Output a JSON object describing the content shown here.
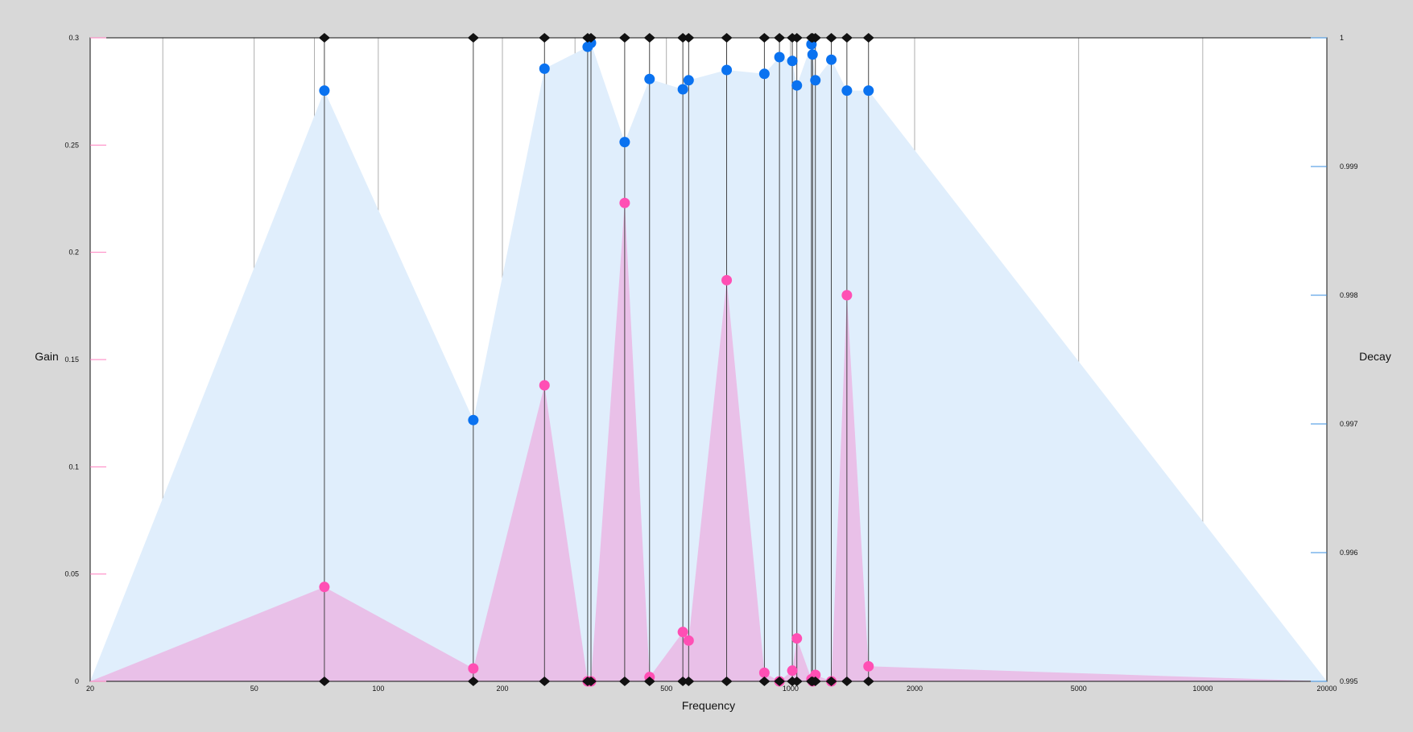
{
  "chart_data": {
    "type": "line",
    "title": "",
    "xlabel": "Frequency",
    "ylabel": "Gain",
    "y2label": "Decay",
    "x_scale": "log",
    "xlim": [
      20,
      20000
    ],
    "ylim": [
      0,
      0.3
    ],
    "y2lim": [
      0.995,
      1
    ],
    "x_ticks": [
      {
        "value": 20,
        "label": "20"
      },
      {
        "value": 50,
        "label": "50"
      },
      {
        "value": 100,
        "label": "100"
      },
      {
        "value": 200,
        "label": "200"
      },
      {
        "value": 500,
        "label": "500"
      },
      {
        "value": 1000,
        "label": "1000"
      },
      {
        "value": 2000,
        "label": "2000"
      },
      {
        "value": 5000,
        "label": "5000"
      },
      {
        "value": 10000,
        "label": "10000"
      },
      {
        "value": 20000,
        "label": "20000"
      }
    ],
    "x_grid_only": [
      30,
      70,
      300,
      700
    ],
    "y_ticks": [
      {
        "value": 0,
        "label": "0"
      },
      {
        "value": 0.05,
        "label": "0.05"
      },
      {
        "value": 0.1,
        "label": "0.1"
      },
      {
        "value": 0.15,
        "label": "0.15"
      },
      {
        "value": 0.2,
        "label": "0.2"
      },
      {
        "value": 0.25,
        "label": "0.25"
      },
      {
        "value": 0.3,
        "label": "0.3"
      }
    ],
    "y2_ticks": [
      {
        "value": 0.995,
        "label": "0.995"
      },
      {
        "value": 0.996,
        "label": "0.996"
      },
      {
        "value": 0.997,
        "label": "0.997"
      },
      {
        "value": 0.998,
        "label": "0.998"
      },
      {
        "value": 0.999,
        "label": "0.999"
      },
      {
        "value": 1,
        "label": "1"
      }
    ],
    "frequencies": [
      74,
      170,
      253,
      322,
      328,
      396,
      455,
      548,
      566,
      700,
      864,
      940,
      1010,
      1036,
      1124,
      1131,
      1149,
      1256,
      1370,
      1546
    ],
    "series": [
      {
        "axis": "left",
        "color": "#ff4fb4",
        "fill": "#e9c0e8",
        "values": [
          0.044,
          0.006,
          0.138,
          0.0,
          0.0,
          0.223,
          0.002,
          0.023,
          0.019,
          0.187,
          0.004,
          0.0,
          0.005,
          0.02,
          0.001,
          0.0,
          0.003,
          0.0,
          0.18,
          0.007
        ]
      },
      {
        "axis": "right",
        "color": "#0a72f0",
        "fill": "#e0eefc",
        "values": [
          0.99959,
          0.99703,
          0.99976,
          0.99993,
          0.99996,
          0.99919,
          0.99968,
          0.9996,
          0.99967,
          0.99975,
          0.99972,
          0.99985,
          0.99982,
          0.99963,
          0.99995,
          0.99987,
          0.99967,
          0.99983,
          0.99959,
          0.99959
        ]
      }
    ],
    "colors": {
      "background": "#d8d8d8",
      "plot": "#ffffff",
      "gridline": "#9a9a9a",
      "stem": "#333333",
      "marker": "#111111",
      "gain_tick": "#ff7fbf",
      "decay_tick": "#3a8fe0"
    },
    "grid": true,
    "legend": "none"
  }
}
